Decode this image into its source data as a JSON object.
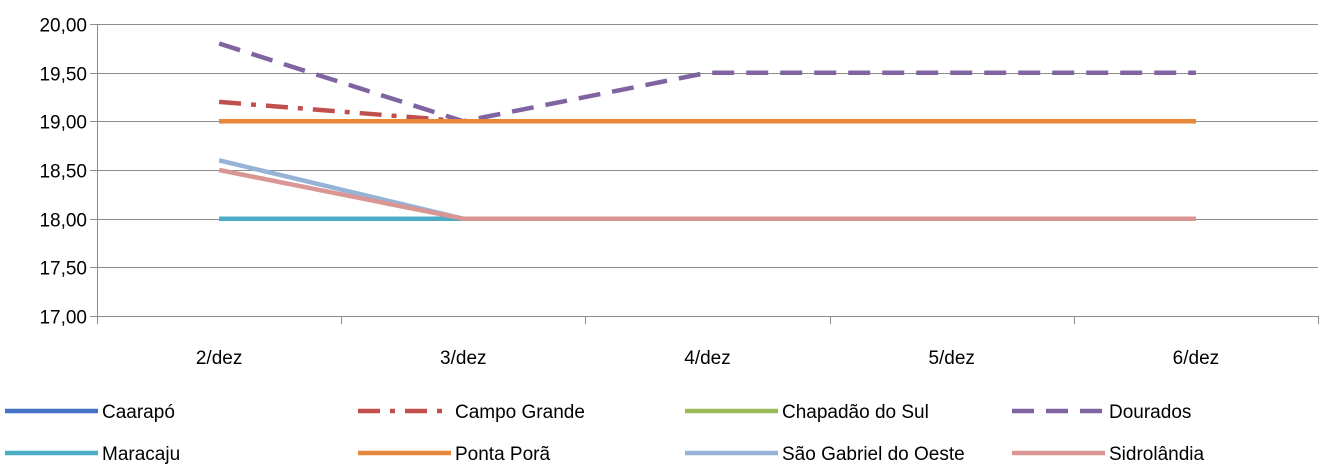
{
  "chart_data": {
    "type": "line",
    "title": "",
    "xlabel": "",
    "ylabel": "",
    "categories": [
      "2/dez",
      "3/dez",
      "4/dez",
      "5/dez",
      "6/dez"
    ],
    "ylim": [
      17,
      20
    ],
    "ytick_values": [
      17,
      17.5,
      18,
      18.5,
      19,
      19.5,
      20
    ],
    "ytick_labels": [
      "17,00",
      "17,50",
      "18,00",
      "18,50",
      "19,00",
      "19,50",
      "20,00"
    ],
    "grid": "horizontal",
    "legend_position": "bottom",
    "series": [
      {
        "name": "Caarapó",
        "values": [
          19,
          19,
          19,
          19,
          19
        ],
        "color": "#4472c4",
        "dash": "solid"
      },
      {
        "name": "Campo Grande",
        "values": [
          19.2,
          19,
          19,
          19,
          19
        ],
        "color": "#c0504d",
        "dash": "dashdot"
      },
      {
        "name": "Chapadão do Sul",
        "values": [
          18,
          18,
          18,
          18,
          18
        ],
        "color": "#9bbb59",
        "dash": "solid"
      },
      {
        "name": "Dourados",
        "values": [
          19.8,
          19,
          19.5,
          19.5,
          19.5
        ],
        "color": "#8064a2",
        "dash": "dash"
      },
      {
        "name": "Maracaju",
        "values": [
          18,
          18,
          18,
          18,
          18
        ],
        "color": "#4bacc6",
        "dash": "solid"
      },
      {
        "name": "Ponta Porã",
        "values": [
          19,
          19,
          19,
          19,
          19
        ],
        "color": "#e6873a",
        "dash": "solid"
      },
      {
        "name": "São Gabriel do Oeste",
        "values": [
          18.6,
          18,
          18,
          18,
          18
        ],
        "color": "#95b3d7",
        "dash": "solid"
      },
      {
        "name": "Sidrolândia",
        "values": [
          18.5,
          18,
          18,
          18,
          18
        ],
        "color": "#d99694",
        "dash": "solid"
      }
    ]
  }
}
